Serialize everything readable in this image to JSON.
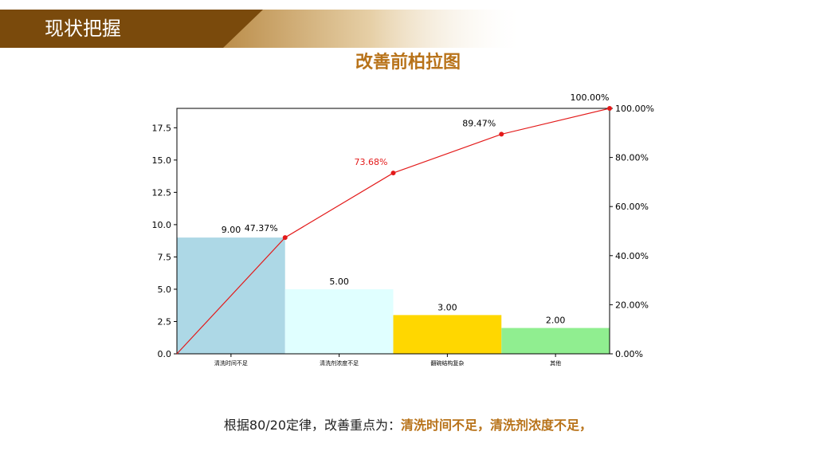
{
  "header": {
    "title": "现状把握"
  },
  "colors": {
    "header_dark": "#7a4a0c",
    "header_light": "#c9a46a",
    "title": "#b8731a",
    "line": "#e31a1a",
    "highlight_label": "#e31a1a",
    "bars": [
      "#add8e6",
      "#e0ffff",
      "#ffd700",
      "#90ee90"
    ]
  },
  "chart_data": {
    "type": "bar",
    "title": "改善前柏拉图",
    "categories": [
      "清洗时间不足",
      "清洗剂浓度不足",
      "翻碗结构复杂",
      "其他"
    ],
    "values": [
      9,
      5,
      3,
      2
    ],
    "value_labels": [
      "9.00",
      "5.00",
      "3.00",
      "2.00"
    ],
    "cumulative_percent": [
      0,
      47.37,
      73.68,
      89.47,
      100.0
    ],
    "cumulative_labels": [
      "47.37%",
      "73.68%",
      "89.47%",
      "100.00%"
    ],
    "y_ticks": [
      "0.0",
      "2.5",
      "5.0",
      "7.5",
      "10.0",
      "12.5",
      "15.0",
      "17.5"
    ],
    "y2_ticks": [
      "0.00%",
      "20.00%",
      "40.00%",
      "60.00%",
      "80.00%",
      "100.00%"
    ],
    "ylim": [
      0,
      19
    ],
    "y2lim": [
      0,
      100
    ],
    "grid": false
  },
  "conclusion": {
    "prefix": "根据80/20定律，改善重点为：",
    "highlight": "清洗时间不足，清洗剂浓度不足，"
  }
}
